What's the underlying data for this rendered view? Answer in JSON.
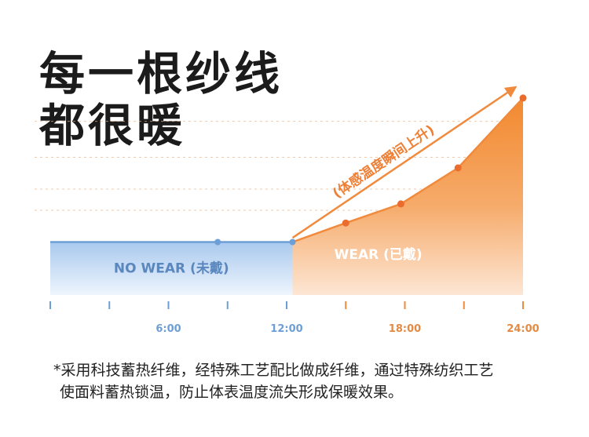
{
  "headline": {
    "line1": "每一根纱线",
    "line2": "都很暖"
  },
  "footnote": {
    "line1": "*采用科技蓄热纤维，经特殊工艺配比做成纤维，通过特殊纺织工艺",
    "line2": "使面料蓄热锁温，防止体表温度流失形成保暖效果。"
  },
  "colors": {
    "no_wear": "#6d9fd6",
    "wear": "#f08a3c",
    "label_wear": "#ffffff",
    "label_no_wear": "#5a87bd",
    "tick_label": "#e38a44"
  },
  "chart_data": {
    "type": "area",
    "x_unit": "hour",
    "xlim": [
      0,
      24
    ],
    "ylim": [
      0,
      10
    ],
    "x_ticks": [
      0,
      3,
      6,
      9,
      12,
      15,
      18,
      21,
      24
    ],
    "x_tick_labels": [
      {
        "x": 6,
        "label": "6:00"
      },
      {
        "x": 12,
        "label": "12:00"
      },
      {
        "x": 18,
        "label": "18:00"
      },
      {
        "x": 24,
        "label": "24:00"
      }
    ],
    "grid": "horizontal dashed",
    "series": [
      {
        "name": "NO WEAR (未戴)",
        "x": [
          0,
          8.5,
          12.3
        ],
        "y": [
          2.5,
          2.5,
          2.5
        ]
      },
      {
        "name": "WEAR (已戴)",
        "x": [
          12.3,
          15,
          17.8,
          20.7,
          24
        ],
        "y": [
          2.5,
          3.4,
          4.3,
          6.0,
          9.3
        ]
      }
    ],
    "annotation": {
      "text": "(体感温度瞬间上升)",
      "from": [
        12.3,
        2.7
      ],
      "to": [
        23.6,
        9.8
      ]
    }
  }
}
